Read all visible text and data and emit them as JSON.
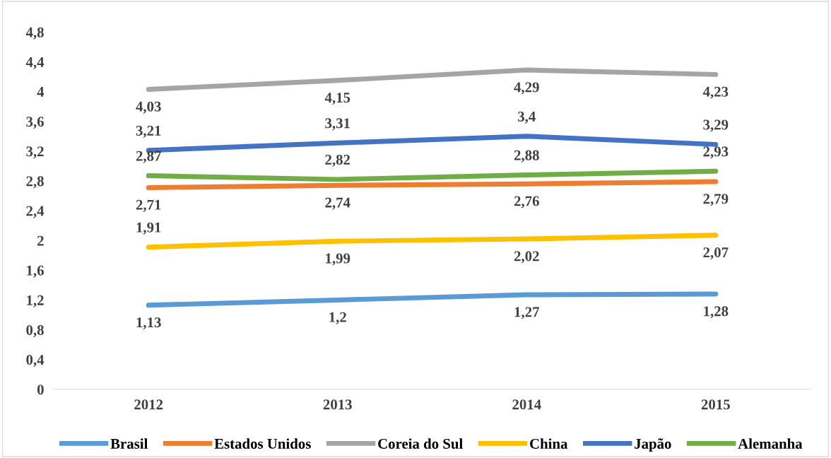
{
  "chart_data": {
    "type": "line",
    "categories": [
      "2012",
      "2013",
      "2014",
      "2015"
    ],
    "ylim": [
      0,
      4.8
    ],
    "yticks": [
      0,
      {
        "value": 0.4,
        "label": "0,4"
      },
      {
        "value": 0.8,
        "label": "0,8"
      },
      {
        "value": 1.2,
        "label": "1,2"
      },
      {
        "value": 1.6,
        "label": "1,6"
      },
      2,
      {
        "value": 2.4,
        "label": "2,4"
      },
      {
        "value": 2.8,
        "label": "2,8"
      },
      {
        "value": 3.2,
        "label": "3,2"
      },
      {
        "value": 3.6,
        "label": "3,6"
      },
      4,
      {
        "value": 4.4,
        "label": "4,4"
      },
      {
        "value": 4.8,
        "label": "4,8"
      }
    ],
    "grid": false,
    "legend": "bottom",
    "marker": "none",
    "line_style": "solid",
    "series": [
      {
        "name": "Brasil",
        "color": "#5b9bd5",
        "values": [
          1.13,
          1.2,
          1.27,
          1.28
        ],
        "value_labels": [
          "1,13",
          "1,2",
          "1,27",
          "1,28"
        ]
      },
      {
        "name": "Estados Unidos",
        "color": "#ed7d31",
        "values": [
          2.71,
          2.74,
          2.76,
          2.79
        ],
        "value_labels": [
          "2,71",
          "2,74",
          "2,76",
          "2,79"
        ]
      },
      {
        "name": "Coreia do Sul",
        "color": "#a5a5a5",
        "values": [
          4.03,
          4.15,
          4.29,
          4.23
        ],
        "value_labels": [
          "4,03",
          "4,15",
          "4,29",
          "4,23"
        ]
      },
      {
        "name": "China",
        "color": "#ffc000",
        "values": [
          1.91,
          1.99,
          2.02,
          2.07
        ],
        "value_labels": [
          "1,91",
          "1,99",
          "2,02",
          "2,07"
        ]
      },
      {
        "name": "Japão",
        "color": "#4472c4",
        "values": [
          3.21,
          3.31,
          3.4,
          3.29
        ],
        "value_labels": [
          "3,21",
          "3,31",
          "3,4",
          "3,29"
        ]
      },
      {
        "name": "Alemanha",
        "color": "#70ad47",
        "values": [
          2.87,
          2.82,
          2.88,
          2.93
        ],
        "value_labels": [
          "2,87",
          "2,82",
          "2,88",
          "2,93"
        ]
      }
    ]
  }
}
